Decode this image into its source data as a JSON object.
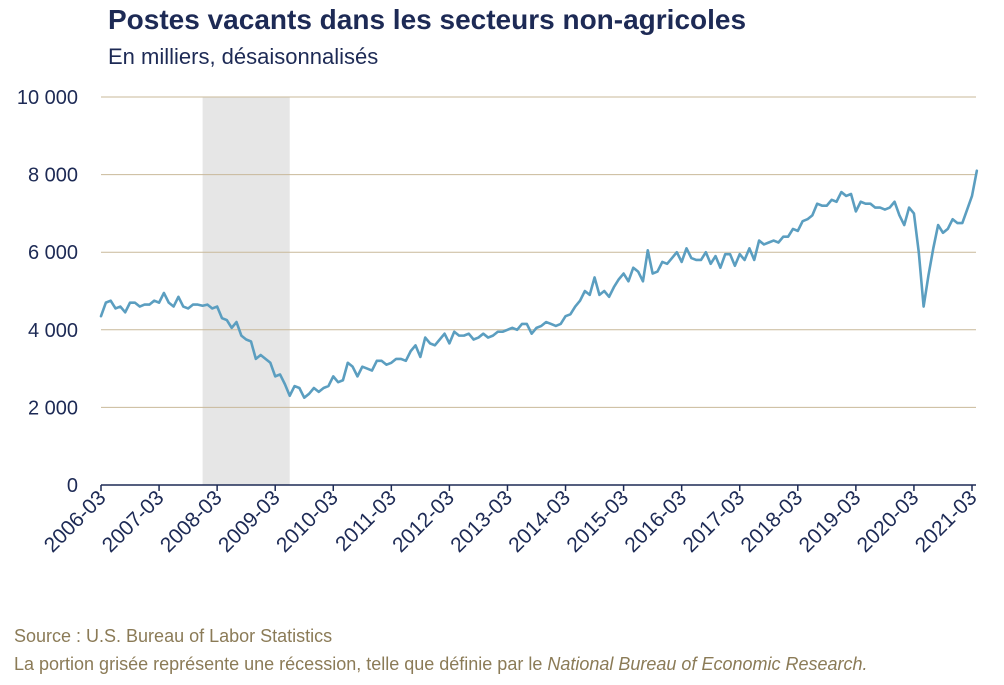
{
  "header": {
    "title": "Postes vacants dans les secteurs non-agricoles",
    "subtitle": "En milliers, désaisonnalisés"
  },
  "footer": {
    "source": "Source : U.S. Bureau of Labor Statistics",
    "note_prefix": "La portion grisée représente une récession, telle que définie par le ",
    "note_italic": "National Bureau of Economic Research."
  },
  "colors": {
    "line": "#5b9ec0",
    "grid": "#c9b99a",
    "axis_text": "#1d2a55",
    "recession": "#e6e6e6",
    "footer_text": "#8b7b57"
  },
  "chart_data": {
    "type": "line",
    "title": "Postes vacants dans les secteurs non-agricoles",
    "subtitle": "En milliers, désaisonnalisés",
    "ylim": [
      0,
      10000
    ],
    "y_ticks": [
      0,
      2000,
      4000,
      6000,
      8000,
      10000
    ],
    "y_tick_labels": [
      "0",
      "2 000",
      "4 000",
      "6 000",
      "8 000",
      "10 000"
    ],
    "x_tick_labels": [
      "2006-03",
      "2007-03",
      "2008-03",
      "2009-03",
      "2010-03",
      "2011-03",
      "2012-03",
      "2013-03",
      "2014-03",
      "2015-03",
      "2016-03",
      "2017-03",
      "2018-03",
      "2019-03",
      "2020-03",
      "2021-03"
    ],
    "grid": "horizontal",
    "recession": {
      "start": "2007-12",
      "end": "2009-06"
    },
    "x_start": "2006-03",
    "series": [
      {
        "values": [
          4350,
          4700,
          4750,
          4550,
          4600,
          4450,
          4700,
          4700,
          4600,
          4650,
          4650,
          4750,
          4700,
          4950,
          4700,
          4600,
          4850,
          4600,
          4550,
          4650,
          4650,
          4620,
          4650,
          4550,
          4600,
          4300,
          4250,
          4050,
          4200,
          3850,
          3750,
          3700,
          3250,
          3350,
          3250,
          3150,
          2800,
          2850,
          2600,
          2300,
          2550,
          2500,
          2250,
          2350,
          2500,
          2400,
          2500,
          2550,
          2800,
          2650,
          2700,
          3150,
          3050,
          2800,
          3050,
          3000,
          2950,
          3200,
          3200,
          3100,
          3150,
          3250,
          3250,
          3200,
          3450,
          3600,
          3300,
          3800,
          3650,
          3600,
          3750,
          3900,
          3650,
          3950,
          3850,
          3850,
          3900,
          3750,
          3800,
          3900,
          3800,
          3850,
          3950,
          3950,
          4000,
          4050,
          4000,
          4150,
          4150,
          3900,
          4050,
          4100,
          4200,
          4150,
          4100,
          4150,
          4350,
          4400,
          4600,
          4750,
          5000,
          4900,
          5350,
          4900,
          5000,
          4850,
          5100,
          5300,
          5450,
          5250,
          5600,
          5500,
          5250,
          6050,
          5450,
          5500,
          5750,
          5700,
          5850,
          6000,
          5750,
          6100,
          5850,
          5800,
          5800,
          6000,
          5700,
          5900,
          5600,
          5950,
          5950,
          5650,
          5950,
          5800,
          6100,
          5800,
          6300,
          6200,
          6250,
          6300,
          6250,
          6400,
          6400,
          6600,
          6550,
          6800,
          6850,
          6950,
          7250,
          7200,
          7200,
          7350,
          7300,
          7550,
          7450,
          7500,
          7050,
          7300,
          7250,
          7250,
          7150,
          7150,
          7100,
          7150,
          7300,
          6950,
          6700,
          7150,
          7000,
          6000,
          4600,
          5400,
          6100,
          6700,
          6500,
          6600,
          6850,
          6750,
          6750,
          7100,
          7450,
          8100
        ]
      }
    ]
  }
}
